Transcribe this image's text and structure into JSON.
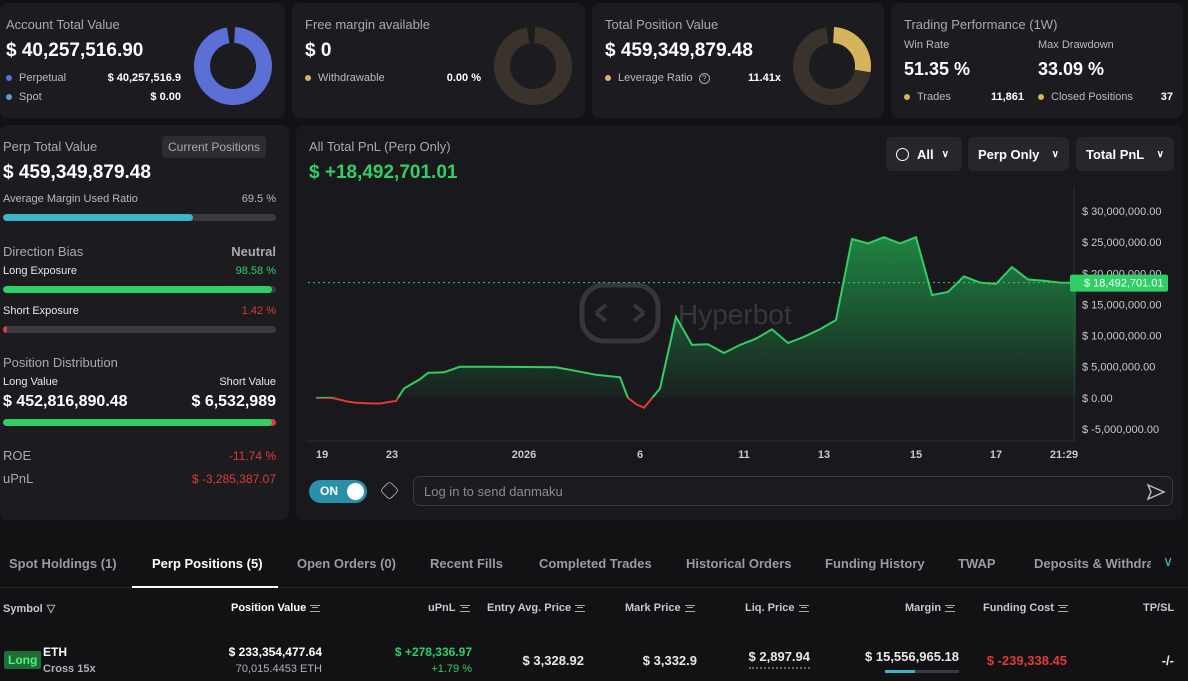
{
  "summary": {
    "account": {
      "label": "Account Total Value",
      "value": "$ 40,257,516.90",
      "rows": [
        {
          "label": "Perpetual",
          "value": "$ 40,257,516.9",
          "color": "#5b6fd6"
        },
        {
          "label": "Spot",
          "value": "$ 0.00",
          "color": "#5b9bd6"
        }
      ]
    },
    "margin": {
      "label": "Free margin available",
      "value": "$ 0",
      "rows": [
        {
          "label": "Withdrawable",
          "value": "0.00 %",
          "color": "#d6b45b"
        }
      ]
    },
    "position": {
      "label": "Total Position Value",
      "value": "$ 459,349,879.48",
      "rows": [
        {
          "label": "Leverage Ratio",
          "value": "11.41x",
          "color": "#d6b45b"
        }
      ]
    },
    "performance": {
      "label": "Trading Performance (1W)",
      "win_rate_label": "Win Rate",
      "win_rate": "51.35 %",
      "drawdown_label": "Max Drawdown",
      "drawdown": "33.09 %",
      "trades_label": "Trades",
      "trades": "11,861",
      "closed_label": "Closed Positions",
      "closed": "37"
    }
  },
  "perp": {
    "title": "Perp Total Value",
    "button": "Current Positions",
    "value": "$ 459,349,879.48",
    "margin_ratio_label": "Average Margin Used Ratio",
    "margin_ratio": "69.5 %",
    "margin_ratio_frac": 0.695,
    "bias_label": "Direction Bias",
    "bias": "Neutral",
    "long_label": "Long Exposure",
    "long": "98.58 %",
    "long_frac": 0.9858,
    "short_label": "Short Exposure",
    "short": "1.42 %",
    "short_frac": 0.0142,
    "dist_label": "Position Distribution",
    "long_value_label": "Long Value",
    "short_value_label": "Short Value",
    "long_value": "$ 452,816,890.48",
    "short_value": "$ 6,532,989",
    "roe_label": "ROE",
    "roe": "-11.74 %",
    "upnl_label": "uPnL",
    "upnl": "$ -3,285,387.07"
  },
  "pnl": {
    "title": "All Total PnL (Perp Only)",
    "value": "$ +18,492,701.01",
    "filters": {
      "time": "All",
      "scope": "Perp Only",
      "metric": "Total PnL"
    },
    "watermark": "Hyperbot",
    "current_label": "$ 18,492,701.01",
    "danmaku_toggle": "ON",
    "danmaku_placeholder": "Log in to send danmaku"
  },
  "chart_data": {
    "type": "area",
    "ylim": [
      -5000000,
      30000000
    ],
    "yticks": [
      "$ 30,000,000.00",
      "$ 25,000,000.00",
      "$ 20,000,000.00",
      "$ 15,000,000.00",
      "$ 10,000,000.00",
      "$ 5,000,000.00",
      "$ 0.00",
      "$ -5,000,000.00"
    ],
    "ytick_values": [
      30000000,
      25000000,
      20000000,
      15000000,
      10000000,
      5000000,
      0,
      -5000000
    ],
    "xticks": [
      "19",
      "23",
      "2026",
      "6",
      "11",
      "13",
      "15",
      "17",
      "21:29"
    ],
    "xtick_pos": [
      0,
      9.5,
      26,
      40.5,
      53.5,
      63.5,
      75,
      85,
      93.5
    ],
    "current_value": 18492701.01,
    "series": [
      {
        "x": [
          0,
          2,
          4,
          5,
          7,
          8,
          9,
          10,
          11,
          13,
          14,
          16,
          18,
          21,
          30,
          33,
          35,
          38,
          39,
          40,
          41,
          43,
          45,
          47,
          49,
          51,
          53,
          55,
          57,
          59,
          61,
          63,
          65,
          67,
          69,
          71,
          73,
          75,
          77,
          79,
          81,
          83,
          85,
          87,
          89,
          91,
          93,
          95
        ],
        "y": [
          0,
          0,
          -600000,
          -800000,
          -900000,
          -900000,
          -700000,
          -500000,
          1500000,
          3000000,
          4000000,
          4100000,
          5000000,
          5000000,
          4900000,
          4200000,
          3700000,
          3300000,
          0,
          -1000000,
          -1600000,
          1500000,
          13000000,
          8500000,
          8600000,
          7200000,
          8500000,
          9500000,
          11000000,
          8800000,
          9800000,
          11000000,
          12500000,
          25500000,
          24800000,
          25800000,
          24800000,
          25800000,
          16500000,
          17000000,
          19500000,
          18500000,
          18300000,
          21000000,
          19000000,
          18800000,
          18500000,
          18492701
        ]
      }
    ]
  },
  "tabs": [
    "Spot Holdings (1)",
    "Perp Positions (5)",
    "Open Orders (0)",
    "Recent Fills",
    "Completed Trades",
    "Historical Orders",
    "Funding History",
    "TWAP",
    "Deposits & Withdraw"
  ],
  "table": {
    "headers": [
      "Symbol",
      "Position Value",
      "uPnL",
      "Entry Avg. Price",
      "Mark Price",
      "Liq. Price",
      "Margin",
      "Funding Cost",
      "TP/SL"
    ],
    "rows": [
      {
        "side": "Long",
        "symbol": "ETH",
        "mode": "Cross 15x",
        "position_value": "$ 233,354,477.64",
        "size": "70,015.4453 ETH",
        "upnl": "$ +278,336.97",
        "upnl_pct": "+1.79 %",
        "entry": "$ 3,328.92",
        "mark": "$ 3,332.9",
        "liq": "$ 2,897.94",
        "margin": "$ 15,556,965.18",
        "funding": "$ -239,338.45",
        "tpsl": "-/-"
      }
    ]
  }
}
